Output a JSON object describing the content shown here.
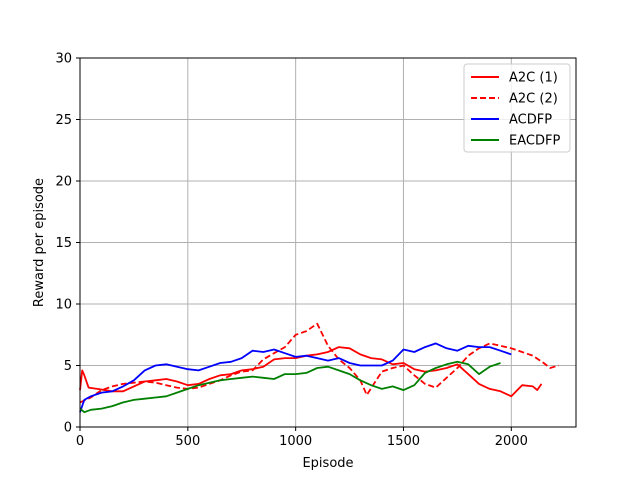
{
  "chart_data": {
    "type": "line",
    "xlabel": "Episode",
    "ylabel": "Reward per episode",
    "xlim": [
      0,
      2300
    ],
    "ylim": [
      0,
      30
    ],
    "xticks": [
      0,
      500,
      1000,
      1500,
      2000
    ],
    "yticks": [
      0,
      5,
      10,
      15,
      20,
      25,
      30
    ],
    "grid": true,
    "legend_position": "top-right",
    "series": [
      {
        "name": "A2C (1)",
        "color": "#ff0000",
        "dash": "solid",
        "points": [
          [
            0,
            3.0
          ],
          [
            10,
            4.6
          ],
          [
            20,
            4.2
          ],
          [
            40,
            3.2
          ],
          [
            80,
            3.1
          ],
          [
            150,
            2.9
          ],
          [
            200,
            2.9
          ],
          [
            250,
            3.3
          ],
          [
            300,
            3.7
          ],
          [
            350,
            3.8
          ],
          [
            400,
            3.9
          ],
          [
            450,
            3.7
          ],
          [
            500,
            3.4
          ],
          [
            550,
            3.5
          ],
          [
            600,
            3.9
          ],
          [
            650,
            4.2
          ],
          [
            700,
            4.3
          ],
          [
            750,
            4.6
          ],
          [
            800,
            4.7
          ],
          [
            850,
            4.9
          ],
          [
            900,
            5.5
          ],
          [
            950,
            5.6
          ],
          [
            1000,
            5.6
          ],
          [
            1050,
            5.8
          ],
          [
            1100,
            5.9
          ],
          [
            1150,
            6.1
          ],
          [
            1200,
            6.5
          ],
          [
            1250,
            6.4
          ],
          [
            1300,
            5.9
          ],
          [
            1350,
            5.6
          ],
          [
            1400,
            5.5
          ],
          [
            1450,
            5.1
          ],
          [
            1500,
            5.2
          ],
          [
            1550,
            4.7
          ],
          [
            1600,
            4.5
          ],
          [
            1650,
            4.6
          ],
          [
            1700,
            4.8
          ],
          [
            1750,
            5.1
          ],
          [
            1800,
            4.3
          ],
          [
            1850,
            3.5
          ],
          [
            1900,
            3.1
          ],
          [
            1950,
            2.9
          ],
          [
            2000,
            2.5
          ],
          [
            2050,
            3.4
          ],
          [
            2100,
            3.3
          ],
          [
            2120,
            3.0
          ],
          [
            2140,
            3.5
          ]
        ]
      },
      {
        "name": "A2C (2)",
        "color": "#ff0000",
        "dash": "dashed",
        "points": [
          [
            0,
            2.0
          ],
          [
            50,
            2.4
          ],
          [
            100,
            3.0
          ],
          [
            150,
            3.3
          ],
          [
            200,
            3.5
          ],
          [
            250,
            3.6
          ],
          [
            300,
            3.7
          ],
          [
            350,
            3.6
          ],
          [
            400,
            3.4
          ],
          [
            450,
            3.2
          ],
          [
            500,
            3.1
          ],
          [
            550,
            3.2
          ],
          [
            600,
            3.5
          ],
          [
            650,
            3.8
          ],
          [
            700,
            4.2
          ],
          [
            750,
            4.5
          ],
          [
            800,
            4.6
          ],
          [
            850,
            5.5
          ],
          [
            900,
            6.0
          ],
          [
            950,
            6.5
          ],
          [
            1000,
            7.5
          ],
          [
            1050,
            7.8
          ],
          [
            1100,
            8.4
          ],
          [
            1150,
            6.6
          ],
          [
            1200,
            5.5
          ],
          [
            1250,
            4.8
          ],
          [
            1300,
            3.8
          ],
          [
            1330,
            2.6
          ],
          [
            1370,
            3.7
          ],
          [
            1400,
            4.5
          ],
          [
            1450,
            4.8
          ],
          [
            1500,
            5.0
          ],
          [
            1550,
            4.2
          ],
          [
            1600,
            3.5
          ],
          [
            1650,
            3.2
          ],
          [
            1700,
            4.0
          ],
          [
            1750,
            4.8
          ],
          [
            1800,
            5.8
          ],
          [
            1850,
            6.4
          ],
          [
            1900,
            6.8
          ],
          [
            1950,
            6.6
          ],
          [
            2000,
            6.4
          ],
          [
            2050,
            6.1
          ],
          [
            2100,
            5.8
          ],
          [
            2150,
            5.2
          ],
          [
            2180,
            4.8
          ],
          [
            2220,
            5.0
          ]
        ]
      },
      {
        "name": "ACDFP",
        "color": "#0000ff",
        "dash": "solid",
        "points": [
          [
            0,
            1.2
          ],
          [
            20,
            2.2
          ],
          [
            50,
            2.5
          ],
          [
            100,
            2.8
          ],
          [
            150,
            2.9
          ],
          [
            200,
            3.3
          ],
          [
            250,
            3.8
          ],
          [
            300,
            4.6
          ],
          [
            350,
            5.0
          ],
          [
            400,
            5.1
          ],
          [
            450,
            4.9
          ],
          [
            500,
            4.7
          ],
          [
            550,
            4.6
          ],
          [
            600,
            4.9
          ],
          [
            650,
            5.2
          ],
          [
            700,
            5.3
          ],
          [
            750,
            5.6
          ],
          [
            800,
            6.2
          ],
          [
            850,
            6.1
          ],
          [
            900,
            6.3
          ],
          [
            950,
            6.0
          ],
          [
            1000,
            5.7
          ],
          [
            1050,
            5.8
          ],
          [
            1100,
            5.6
          ],
          [
            1150,
            5.4
          ],
          [
            1200,
            5.6
          ],
          [
            1250,
            5.2
          ],
          [
            1300,
            5.0
          ],
          [
            1350,
            5.0
          ],
          [
            1400,
            5.0
          ],
          [
            1450,
            5.4
          ],
          [
            1500,
            6.3
          ],
          [
            1550,
            6.1
          ],
          [
            1600,
            6.5
          ],
          [
            1650,
            6.8
          ],
          [
            1700,
            6.4
          ],
          [
            1750,
            6.2
          ],
          [
            1800,
            6.6
          ],
          [
            1850,
            6.5
          ],
          [
            1900,
            6.5
          ],
          [
            1950,
            6.2
          ],
          [
            2000,
            5.9
          ]
        ]
      },
      {
        "name": "EACDFP",
        "color": "#008000",
        "dash": "solid",
        "points": [
          [
            0,
            1.5
          ],
          [
            20,
            1.2
          ],
          [
            50,
            1.4
          ],
          [
            100,
            1.5
          ],
          [
            150,
            1.7
          ],
          [
            200,
            2.0
          ],
          [
            250,
            2.2
          ],
          [
            300,
            2.3
          ],
          [
            350,
            2.4
          ],
          [
            400,
            2.5
          ],
          [
            450,
            2.8
          ],
          [
            500,
            3.1
          ],
          [
            550,
            3.4
          ],
          [
            600,
            3.6
          ],
          [
            650,
            3.8
          ],
          [
            700,
            3.9
          ],
          [
            750,
            4.0
          ],
          [
            800,
            4.1
          ],
          [
            850,
            4.0
          ],
          [
            900,
            3.9
          ],
          [
            950,
            4.3
          ],
          [
            1000,
            4.3
          ],
          [
            1050,
            4.4
          ],
          [
            1100,
            4.8
          ],
          [
            1150,
            4.9
          ],
          [
            1200,
            4.6
          ],
          [
            1250,
            4.3
          ],
          [
            1300,
            3.8
          ],
          [
            1350,
            3.4
          ],
          [
            1400,
            3.1
          ],
          [
            1450,
            3.3
          ],
          [
            1500,
            3.0
          ],
          [
            1550,
            3.4
          ],
          [
            1600,
            4.4
          ],
          [
            1650,
            4.8
          ],
          [
            1700,
            5.1
          ],
          [
            1750,
            5.3
          ],
          [
            1800,
            5.1
          ],
          [
            1850,
            4.3
          ],
          [
            1900,
            4.9
          ],
          [
            1950,
            5.2
          ]
        ]
      }
    ]
  }
}
